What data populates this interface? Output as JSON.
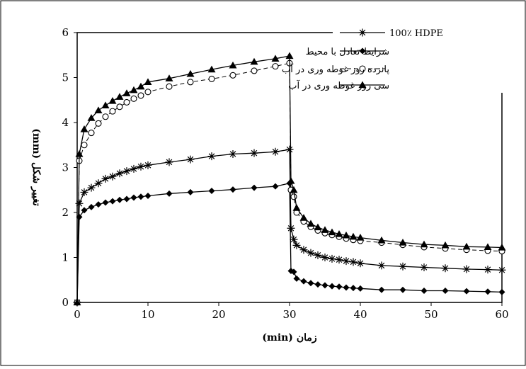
{
  "chart_data": {
    "type": "line",
    "xlabel": "(min) زمان",
    "ylabel": "(mm) تغییر شکل",
    "xlim": [
      0,
      60
    ],
    "ylim": [
      0,
      6
    ],
    "xticks": [
      0,
      10,
      20,
      30,
      40,
      50,
      60
    ],
    "yticks": [
      0,
      1,
      2,
      3,
      4,
      5,
      6
    ],
    "grid": false,
    "legend_position": "top-right",
    "series": [
      {
        "name": "100٪ HDPE",
        "marker": "star",
        "line": "solid",
        "x": [
          0,
          0.3,
          1,
          2,
          3,
          4,
          5,
          6,
          7,
          8,
          9,
          10,
          13,
          16,
          19,
          22,
          25,
          28,
          30,
          30.2,
          30.6,
          31,
          32,
          33,
          34,
          35,
          36,
          37,
          38,
          39,
          40,
          43,
          46,
          49,
          52,
          55,
          58,
          60
        ],
        "y": [
          0,
          2.2,
          2.45,
          2.55,
          2.65,
          2.75,
          2.8,
          2.87,
          2.92,
          2.97,
          3.02,
          3.05,
          3.12,
          3.18,
          3.25,
          3.3,
          3.32,
          3.35,
          3.4,
          1.65,
          1.4,
          1.27,
          1.17,
          1.1,
          1.05,
          1.0,
          0.97,
          0.95,
          0.92,
          0.9,
          0.87,
          0.82,
          0.8,
          0.78,
          0.76,
          0.74,
          0.73,
          0.72
        ]
      },
      {
        "name": "شرایط تعادل با محیط",
        "marker": "diamond",
        "line": "solid",
        "x": [
          0,
          0.3,
          1,
          2,
          3,
          4,
          5,
          6,
          7,
          8,
          9,
          10,
          13,
          16,
          19,
          22,
          25,
          28,
          30,
          30.2,
          30.6,
          31,
          32,
          33,
          34,
          35,
          36,
          37,
          38,
          39,
          40,
          43,
          46,
          49,
          52,
          55,
          58,
          60
        ],
        "y": [
          0,
          1.9,
          2.05,
          2.12,
          2.18,
          2.22,
          2.25,
          2.28,
          2.3,
          2.33,
          2.35,
          2.37,
          2.42,
          2.45,
          2.48,
          2.51,
          2.55,
          2.58,
          2.65,
          0.7,
          0.68,
          0.53,
          0.47,
          0.43,
          0.4,
          0.38,
          0.36,
          0.35,
          0.33,
          0.32,
          0.31,
          0.28,
          0.28,
          0.26,
          0.26,
          0.25,
          0.24,
          0.23
        ]
      },
      {
        "name": "پانزده روز غوطه وری در آب",
        "marker": "circle-open",
        "line": "dashed",
        "x": [
          0,
          0.3,
          1,
          2,
          3,
          4,
          5,
          6,
          7,
          8,
          9,
          10,
          13,
          16,
          19,
          22,
          25,
          28,
          30,
          30.2,
          30.6,
          31,
          32,
          33,
          34,
          35,
          36,
          37,
          38,
          39,
          40,
          43,
          46,
          49,
          52,
          55,
          58,
          60
        ],
        "y": [
          0,
          3.15,
          3.5,
          3.77,
          3.98,
          4.13,
          4.25,
          4.35,
          4.45,
          4.53,
          4.6,
          4.68,
          4.8,
          4.9,
          4.97,
          5.05,
          5.15,
          5.25,
          5.32,
          2.5,
          2.35,
          2.0,
          1.8,
          1.68,
          1.6,
          1.54,
          1.5,
          1.46,
          1.42,
          1.39,
          1.37,
          1.33,
          1.28,
          1.23,
          1.2,
          1.17,
          1.15,
          1.14
        ]
      },
      {
        "name": "سی روز غوطه وری در آب",
        "marker": "triangle",
        "line": "solid",
        "x": [
          0,
          0.3,
          1,
          2,
          3,
          4,
          5,
          6,
          7,
          8,
          9,
          10,
          13,
          16,
          19,
          22,
          25,
          28,
          30,
          30.2,
          30.6,
          31,
          32,
          33,
          34,
          35,
          36,
          37,
          38,
          39,
          40,
          43,
          46,
          49,
          52,
          55,
          58,
          60
        ],
        "y": [
          0,
          3.3,
          3.85,
          4.1,
          4.27,
          4.38,
          4.48,
          4.57,
          4.65,
          4.72,
          4.8,
          4.9,
          4.98,
          5.08,
          5.18,
          5.27,
          5.35,
          5.42,
          5.48,
          2.7,
          2.5,
          2.1,
          1.88,
          1.75,
          1.67,
          1.61,
          1.56,
          1.52,
          1.49,
          1.46,
          1.44,
          1.38,
          1.33,
          1.29,
          1.27,
          1.24,
          1.23,
          1.22
        ]
      }
    ]
  },
  "colors": {
    "ink": "#000000",
    "background": "#ffffff"
  }
}
